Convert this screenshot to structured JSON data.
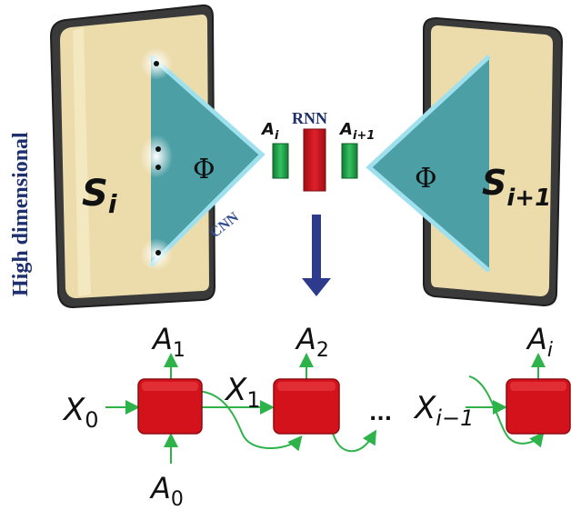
{
  "side_label": "High dimensional",
  "state_left": {
    "base": "S",
    "sub": "i"
  },
  "state_right": {
    "base": "S",
    "sub": "i+1"
  },
  "encoder_symbol_left": "Φ",
  "encoder_symbol_right": "Φ",
  "cnn_label": "CNN",
  "rnn_label": "RNN",
  "action_left": {
    "base": "A",
    "sub": "i"
  },
  "action_right": {
    "base": "A",
    "sub": "i+1"
  },
  "chain": {
    "inputs": [
      {
        "base": "X",
        "sub": "0"
      },
      {
        "base": "X",
        "sub": "1"
      },
      {
        "base": "X",
        "sub": "i−1"
      }
    ],
    "outputs": [
      {
        "base": "A",
        "sub": "1"
      },
      {
        "base": "A",
        "sub": "2"
      },
      {
        "base": "A",
        "sub": "i"
      }
    ],
    "initial": {
      "base": "A",
      "sub": "0"
    },
    "ellipsis": "..."
  },
  "colors": {
    "panel": "#ecdcab",
    "panel_frame": "#3a3a3a",
    "cnn_teal": "#4b9fa5",
    "cnn_edge": "#8fd7e8",
    "rnn_red": "#c8101a",
    "gate_green": "#1f9a46",
    "arrow_navy": "#2e3a8c",
    "label_navy": "#1e2f6e",
    "chain_green": "#2db34a",
    "chain_box": "#d4121b"
  }
}
